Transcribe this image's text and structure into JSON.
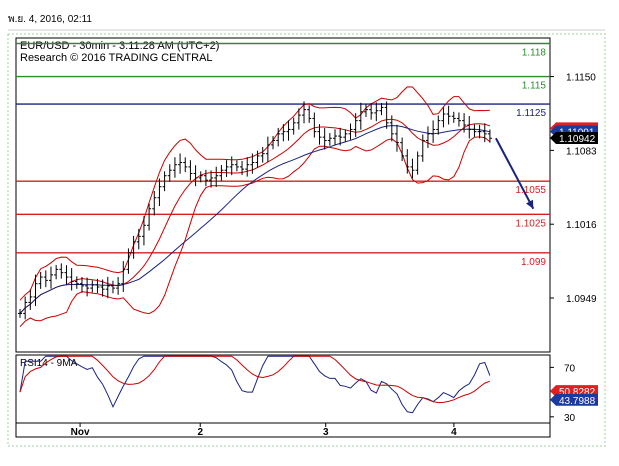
{
  "header": {
    "timestamp": "พ.ย. 4, 2016, 02:11"
  },
  "chart_data": {
    "type": "line",
    "symbol_line": "EUR/USD - 30min - 3:11:28 AM (UTC+2)",
    "research_line": "Research © 2016 TRADING CENTRAL",
    "ylim": [
      1.09,
      1.1185
    ],
    "y_ticks": [
      "1.1150",
      "1.1083",
      "1.1016",
      "1.0949"
    ],
    "x_ticks": [
      {
        "label": "Nov",
        "pos": 0.12
      },
      {
        "label": "2",
        "pos": 0.345
      },
      {
        "label": "3",
        "pos": 0.58
      },
      {
        "label": "4",
        "pos": 0.82
      }
    ],
    "levels": [
      {
        "value": 1.118,
        "label": "1.118",
        "color": "#2e8b2e"
      },
      {
        "value": 1.115,
        "label": "1.115",
        "color": "#2e8b2e"
      },
      {
        "value": 1.1125,
        "label": "1.1125",
        "color": "#1a237e"
      },
      {
        "value": 1.1055,
        "label": "1.1055",
        "color": "#d32020"
      },
      {
        "value": 1.1025,
        "label": "1.1025",
        "color": "#d32020"
      },
      {
        "value": 1.099,
        "label": "1.099",
        "color": "#d32020"
      }
    ],
    "badges": [
      {
        "value": 1.1103,
        "label": "1.1103",
        "bg": "#e02020",
        "fg": "#ffffff"
      },
      {
        "value": 1.11001,
        "label": "1.11001",
        "bg": "#1a3aa0",
        "fg": "#ffffff"
      },
      {
        "value": 1.10942,
        "label": "1.10942",
        "bg": "#000000",
        "fg": "#ffffff"
      }
    ],
    "price": [
      1.0935,
      1.0945,
      1.095,
      1.0962,
      1.0968,
      1.0965,
      1.097,
      1.0975,
      1.0972,
      1.0968,
      1.0964,
      1.0962,
      1.096,
      1.0958,
      1.0961,
      1.0959,
      1.0957,
      1.096,
      1.0958,
      1.0962,
      1.0975,
      1.099,
      1.1,
      1.1005,
      1.1015,
      1.103,
      1.104,
      1.105,
      1.106,
      1.1065,
      1.107,
      1.1072,
      1.1068,
      1.1062,
      1.1058,
      1.106,
      1.1056,
      1.1058,
      1.106,
      1.1065,
      1.1068,
      1.107,
      1.1068,
      1.1066,
      1.107,
      1.1072,
      1.1078,
      1.108,
      1.1088,
      1.1092,
      1.1098,
      1.11,
      1.1102,
      1.1108,
      1.1115,
      1.112,
      1.1112,
      1.11,
      1.1095,
      1.1092,
      1.1094,
      1.1096,
      1.1095,
      1.1098,
      1.1102,
      1.111,
      1.1118,
      1.112,
      1.1117,
      1.1119,
      1.1122,
      1.1108,
      1.1098,
      1.109,
      1.1078,
      1.1068,
      1.1065,
      1.1078,
      1.1092,
      1.1098,
      1.1102,
      1.111,
      1.1116,
      1.1114,
      1.1112,
      1.111,
      1.1106,
      1.1102,
      1.11,
      1.11,
      1.1098,
      1.1094
    ],
    "rsi": {
      "title": "RSI14 - 9MA",
      "ylim": [
        25,
        80
      ],
      "y_ticks": [
        "70",
        "30"
      ],
      "badges": [
        {
          "value": 50.8282,
          "label": "50.8282",
          "bg": "#e02020",
          "fg": "#ffffff"
        },
        {
          "value": 43.7988,
          "label": "43.7988",
          "bg": "#1a3aa0",
          "fg": "#ffffff"
        }
      ]
    },
    "forecast": {
      "from_index": 91,
      "to_value": 1.103,
      "extend_frac": 0.07
    }
  }
}
